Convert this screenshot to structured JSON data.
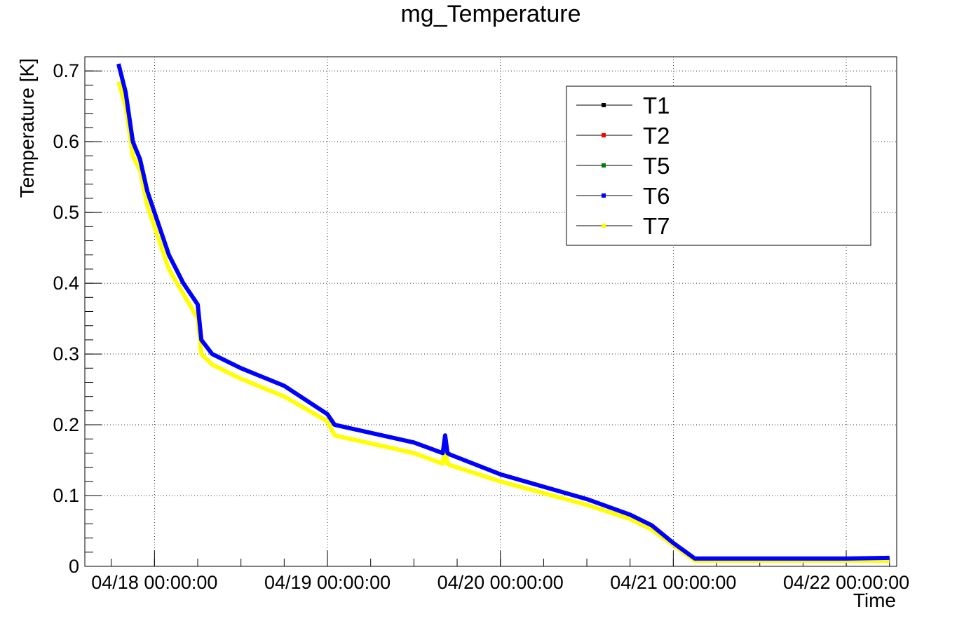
{
  "chart_data": {
    "type": "line",
    "title": "mg_Temperature",
    "xlabel": "Time",
    "ylabel": "Temperature [K]",
    "x_type": "datetime",
    "xlim": [
      "04/17 14:20:00",
      "04/22 07:00:00"
    ],
    "ylim": [
      0,
      0.72
    ],
    "grid": true,
    "legend_position": "top-right",
    "x_ticks": [
      "04/18 00:00:00",
      "04/19 00:00:00",
      "04/20 00:00:00",
      "04/21 00:00:00",
      "04/22 00:00:00"
    ],
    "y_ticks": [
      "0",
      "0.1",
      "0.2",
      "0.3",
      "0.4",
      "0.5",
      "0.6",
      "0.7"
    ],
    "x": [
      "04/17 19:00:00",
      "04/17 20:00:00",
      "04/17 21:00:00",
      "04/17 22:00:00",
      "04/17 23:00:00",
      "04/18 00:00:00",
      "04/18 02:00:00",
      "04/18 04:00:00",
      "04/18 06:00:00",
      "04/18 06:30:00",
      "04/18 08:00:00",
      "04/18 12:00:00",
      "04/18 18:00:00",
      "04/19 00:00:00",
      "04/19 01:00:00",
      "04/19 12:00:00",
      "04/19 16:00:00",
      "04/19 16:20:00",
      "04/19 16:40:00",
      "04/19 17:00:00",
      "04/20 00:00:00",
      "04/20 12:00:00",
      "04/20 18:00:00",
      "04/20 21:00:00",
      "04/21 00:00:00",
      "04/21 03:00:00",
      "04/21 06:00:00",
      "04/22 00:00:00",
      "04/22 06:00:00"
    ],
    "series": [
      {
        "name": "T1",
        "color": "#000000",
        "values": [
          0.71,
          0.67,
          0.6,
          0.575,
          0.53,
          0.5,
          0.44,
          0.4,
          0.37,
          0.32,
          0.3,
          0.28,
          0.255,
          0.215,
          0.2,
          0.175,
          0.16,
          0.185,
          0.16,
          0.158,
          0.13,
          0.095,
          0.073,
          0.058,
          0.033,
          0.011,
          0.011,
          0.011,
          0.012
        ]
      },
      {
        "name": "T2",
        "color": "#ff0000",
        "values": [
          0.71,
          0.67,
          0.6,
          0.575,
          0.53,
          0.5,
          0.44,
          0.4,
          0.37,
          0.32,
          0.3,
          0.28,
          0.255,
          0.215,
          0.2,
          0.175,
          0.16,
          0.185,
          0.16,
          0.158,
          0.13,
          0.095,
          0.073,
          0.058,
          0.033,
          0.011,
          0.011,
          0.011,
          0.012
        ]
      },
      {
        "name": "T5",
        "color": "#008000",
        "values": [
          0.71,
          0.67,
          0.6,
          0.575,
          0.53,
          0.5,
          0.44,
          0.4,
          0.37,
          0.32,
          0.3,
          0.28,
          0.255,
          0.215,
          0.2,
          0.175,
          0.16,
          0.185,
          0.16,
          0.158,
          0.13,
          0.095,
          0.073,
          0.058,
          0.033,
          0.011,
          0.011,
          0.011,
          0.012
        ]
      },
      {
        "name": "T6",
        "color": "#0000ff",
        "values": [
          0.71,
          0.67,
          0.6,
          0.575,
          0.53,
          0.5,
          0.44,
          0.4,
          0.37,
          0.32,
          0.3,
          0.28,
          0.255,
          0.215,
          0.2,
          0.175,
          0.16,
          0.185,
          0.16,
          0.158,
          0.13,
          0.095,
          0.073,
          0.058,
          0.033,
          0.011,
          0.011,
          0.011,
          0.012
        ]
      },
      {
        "name": "T7",
        "color": "#ffff00",
        "values": [
          0.685,
          0.65,
          0.58,
          0.56,
          0.51,
          0.48,
          0.42,
          0.385,
          0.35,
          0.3,
          0.285,
          0.265,
          0.24,
          0.205,
          0.185,
          0.16,
          0.145,
          0.17,
          0.145,
          0.143,
          0.12,
          0.087,
          0.067,
          0.052,
          0.03,
          0.008,
          0.008,
          0.008,
          0.008
        ]
      }
    ]
  }
}
